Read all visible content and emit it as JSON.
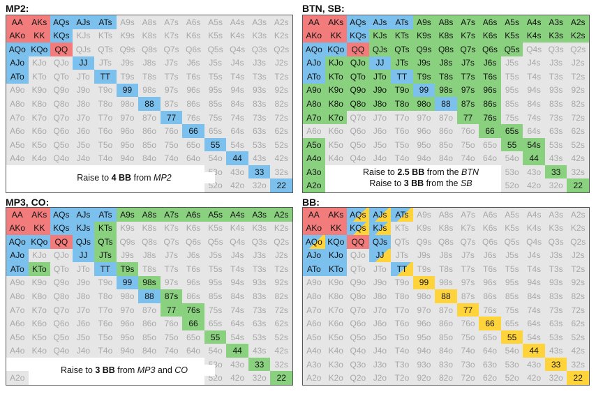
{
  "chart_data": [
    {
      "type": "table",
      "title": "MP2:",
      "caption": {
        "pre": "Raise to ",
        "bold": "4 BB",
        "mid": " from ",
        "ital": "MP2",
        "post": ""
      },
      "red": [
        "AA",
        "AKs",
        "AKo",
        "KK",
        "QQ"
      ],
      "blue": [
        "AQs",
        "AJs",
        "ATs",
        "KQs",
        "AQo",
        "KQo",
        "AJo",
        "JJ",
        "ATo",
        "TT",
        "99",
        "88",
        "77",
        "66",
        "55",
        "44",
        "33",
        "22"
      ],
      "green": [],
      "yellow": [],
      "split": {},
      "hidden": [
        "A3o",
        "K3o",
        "Q3o",
        "J3o",
        "T3o",
        "93o",
        "83o",
        "73o",
        "63o",
        "A2o",
        "K2o",
        "Q2o",
        "J2o",
        "T2o",
        "92o",
        "82o",
        "72o",
        "62o"
      ]
    },
    {
      "type": "table",
      "title": "BTN, SB:",
      "caption": {
        "line1": {
          "pre": "Raise to ",
          "bold": "2.5 BB",
          "mid": " from the ",
          "ital": "BTN"
        },
        "line2": {
          "pre": "Raise to ",
          "bold": "3 BB",
          "mid": " from the ",
          "ital": "SB"
        }
      },
      "red": [
        "AA",
        "AKs",
        "AKo",
        "KK",
        "QQ"
      ],
      "blue": [
        "AQs",
        "AJs",
        "ATs",
        "KQs",
        "AQo",
        "KQo",
        "AJo",
        "JJ",
        "ATo",
        "TT",
        "99",
        "88"
      ],
      "green": [
        "A9s",
        "A8s",
        "A7s",
        "A6s",
        "A5s",
        "A4s",
        "A3s",
        "A2s",
        "KJs",
        "KTs",
        "K9s",
        "K8s",
        "K7s",
        "K6s",
        "K5s",
        "K4s",
        "K3s",
        "K2s",
        "QJs",
        "QTs",
        "Q9s",
        "Q8s",
        "Q7s",
        "Q6s",
        "Q5s",
        "JTs",
        "J9s",
        "J8s",
        "J7s",
        "J6s",
        "T9s",
        "T8s",
        "T7s",
        "T6s",
        "98s",
        "97s",
        "96s",
        "87s",
        "86s",
        "76s",
        "65s",
        "54s",
        "KJo",
        "QJo",
        "KTo",
        "QTo",
        "JTo",
        "A9o",
        "K9o",
        "Q9o",
        "J9o",
        "T9o",
        "A8o",
        "K8o",
        "Q8o",
        "J8o",
        "T8o",
        "98o",
        "A7o",
        "K7o",
        "A5o",
        "A4o",
        "A3o",
        "A2o",
        "77",
        "66",
        "55",
        "44",
        "33",
        "22"
      ],
      "yellow": [],
      "split": {},
      "hidden": [
        "K3o",
        "Q3o",
        "J3o",
        "T3o",
        "93o",
        "83o",
        "73o",
        "63o",
        "K2o",
        "Q2o",
        "J2o",
        "T2o",
        "92o",
        "82o",
        "72o",
        "62o"
      ]
    },
    {
      "type": "table",
      "title": "MP3, CO:",
      "caption": {
        "pre": "Raise to ",
        "bold": "3 BB",
        "mid": " from ",
        "ital": "MP3",
        "post": " and ",
        "ital2": "CO"
      },
      "red": [
        "AA",
        "AKs",
        "AKo",
        "KK",
        "QQ"
      ],
      "blue": [
        "AQs",
        "AJs",
        "ATs",
        "KQs",
        "KJs",
        "AQo",
        "KQo",
        "QJs",
        "AJo",
        "JJ",
        "ATo",
        "TT",
        "99",
        "88"
      ],
      "green": [
        "A9s",
        "A8s",
        "A7s",
        "A6s",
        "A5s",
        "A4s",
        "A3s",
        "A2s",
        "KTs",
        "QTs",
        "JTs",
        "KTo",
        "T9s",
        "98s",
        "87s",
        "77",
        "76s",
        "66",
        "55",
        "44",
        "33",
        "22"
      ],
      "yellow": [],
      "split": {},
      "hidden": [
        "A3o",
        "K3o",
        "Q3o",
        "J3o",
        "T3o",
        "93o",
        "83o",
        "73o",
        "63o",
        "K2o",
        "Q2o",
        "J2o",
        "T2o",
        "92o",
        "82o",
        "72o",
        "62o"
      ]
    },
    {
      "type": "table",
      "title": "BB:",
      "red": [
        "AA",
        "AKs",
        "AKo",
        "KK",
        "QQ"
      ],
      "blue": [
        "KQs",
        "AJs",
        "KJo",
        "ATo",
        "KTo",
        "QJs"
      ],
      "green": [],
      "yellow": [
        "99",
        "88",
        "77",
        "66",
        "55",
        "44",
        "33",
        "22"
      ],
      "split": {
        "AQs": "blue/yellow",
        "AJs": "blue/yellow",
        "ATs": "blue/yellow",
        "KQs": "blue/yellow",
        "KJs": "blue/yellow",
        "AQo": "blue/yellow",
        "JJ": "blue/yellow",
        "TT": "blue/yellow",
        "AJo": "blue",
        "KQo": "blue"
      },
      "hidden": []
    }
  ]
}
